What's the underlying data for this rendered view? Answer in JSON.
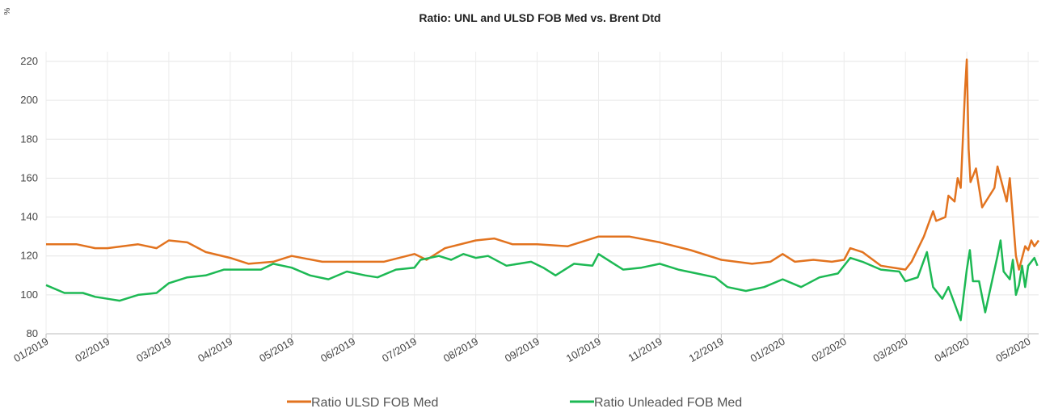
{
  "chart_data": {
    "type": "line",
    "title": "Ratio: UNL and ULSD FOB Med vs. Brent Dtd",
    "y_label": "%",
    "xlim": [
      0,
      16.17
    ],
    "xticks": [
      {
        "value": 0,
        "label": "01/2019"
      },
      {
        "value": 1,
        "label": "02/2019"
      },
      {
        "value": 2,
        "label": "03/2019"
      },
      {
        "value": 3,
        "label": "04/2019"
      },
      {
        "value": 4,
        "label": "05/2019"
      },
      {
        "value": 5,
        "label": "06/2019"
      },
      {
        "value": 6,
        "label": "07/2019"
      },
      {
        "value": 7,
        "label": "08/2019"
      },
      {
        "value": 8,
        "label": "09/2019"
      },
      {
        "value": 9,
        "label": "10/2019"
      },
      {
        "value": 10,
        "label": "11/2019"
      },
      {
        "value": 11,
        "label": "12/2019"
      },
      {
        "value": 12,
        "label": "01/2020"
      },
      {
        "value": 13,
        "label": "02/2020"
      },
      {
        "value": 14,
        "label": "03/2020"
      },
      {
        "value": 15,
        "label": "04/2020"
      },
      {
        "value": 16,
        "label": "05/2020"
      }
    ],
    "ylim": [
      80,
      225
    ],
    "yticks": [
      80,
      100,
      120,
      140,
      160,
      180,
      200,
      220
    ],
    "grid": true,
    "legend": "bottom",
    "series": [
      {
        "name": "Ratio ULSD FOB Med",
        "color": "#e2731f",
        "x": [
          0,
          0.5,
          0.8,
          1,
          1.5,
          1.8,
          2,
          2.3,
          2.6,
          3,
          3.3,
          3.7,
          4,
          4.5,
          5,
          5.5,
          6,
          6.2,
          6.5,
          7,
          7.3,
          7.6,
          8,
          8.5,
          9,
          9.5,
          10,
          10.5,
          11,
          11.5,
          11.8,
          12,
          12.2,
          12.5,
          12.8,
          13,
          13.1,
          13.3,
          13.6,
          14,
          14.1,
          14.3,
          14.45,
          14.5,
          14.65,
          14.7,
          14.8,
          14.85,
          14.9,
          14.97,
          15,
          15.03,
          15.06,
          15.15,
          15.25,
          15.45,
          15.5,
          15.65,
          15.7,
          15.8,
          15.85,
          15.95,
          16,
          16.05,
          16.1,
          16.17
        ],
        "values": [
          126,
          126,
          124,
          124,
          126,
          124,
          128,
          127,
          122,
          119,
          116,
          117,
          120,
          117,
          117,
          117,
          121,
          118,
          124,
          128,
          129,
          126,
          126,
          125,
          130,
          130,
          127,
          123,
          118,
          116,
          117,
          121,
          117,
          118,
          117,
          118,
          124,
          122,
          115,
          113,
          117,
          130,
          143,
          138,
          140,
          151,
          148,
          160,
          155,
          205,
          221,
          175,
          158,
          165,
          145,
          155,
          166,
          148,
          160,
          120,
          113,
          125,
          123,
          128,
          125,
          128
        ]
      },
      {
        "name": "Ratio Unleaded FOB Med",
        "color": "#1db954",
        "x": [
          0,
          0.3,
          0.6,
          0.8,
          1,
          1.2,
          1.5,
          1.8,
          2,
          2.3,
          2.6,
          2.9,
          3.2,
          3.5,
          3.7,
          4,
          4.3,
          4.6,
          4.9,
          5.2,
          5.4,
          5.7,
          6,
          6.1,
          6.4,
          6.6,
          6.8,
          7,
          7.2,
          7.5,
          7.9,
          8.1,
          8.3,
          8.6,
          8.9,
          9,
          9.4,
          9.7,
          10,
          10.3,
          10.6,
          10.9,
          11.1,
          11.4,
          11.7,
          12,
          12.3,
          12.6,
          12.9,
          13.1,
          13.3,
          13.6,
          13.9,
          14,
          14.2,
          14.35,
          14.45,
          14.6,
          14.7,
          14.9,
          14.95,
          15,
          15.05,
          15.1,
          15.2,
          15.3,
          15.5,
          15.55,
          15.6,
          15.7,
          15.75,
          15.8,
          15.85,
          15.9,
          15.95,
          16,
          16.1,
          16.15
        ],
        "values": [
          105,
          101,
          101,
          99,
          98,
          97,
          100,
          101,
          106,
          109,
          110,
          113,
          113,
          113,
          116,
          114,
          110,
          108,
          112,
          110,
          109,
          113,
          114,
          118,
          120,
          118,
          121,
          119,
          120,
          115,
          117,
          114,
          110,
          116,
          115,
          121,
          113,
          114,
          116,
          113,
          111,
          109,
          104,
          102,
          104,
          108,
          104,
          109,
          111,
          119,
          117,
          113,
          112,
          107,
          109,
          122,
          104,
          98,
          104,
          87,
          100,
          113,
          123,
          107,
          107,
          91,
          120,
          128,
          112,
          108,
          118,
          100,
          105,
          115,
          104,
          115,
          119,
          115
        ]
      }
    ]
  }
}
